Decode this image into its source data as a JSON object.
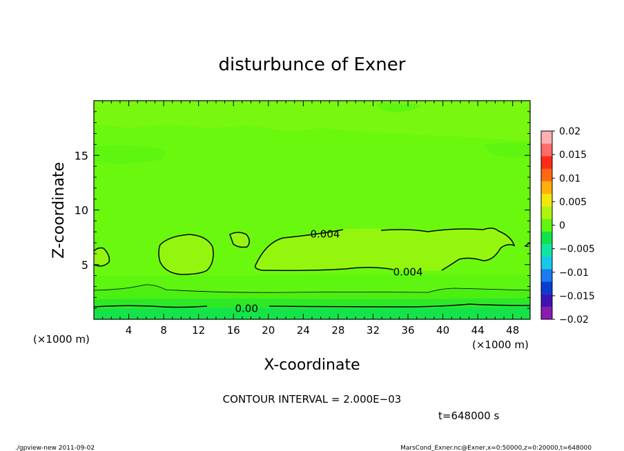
{
  "chart_data": {
    "type": "heatmap",
    "title": "disturbunce of Exner",
    "xlabel": "X-coordinate",
    "ylabel": "Z-coordinate",
    "xunit_left": "(×1000 m)",
    "xunit_right": "(×1000 m)",
    "xlim": [
      0,
      50
    ],
    "ylim": [
      0,
      20
    ],
    "x_ticks": [
      4,
      8,
      12,
      16,
      20,
      24,
      28,
      32,
      36,
      40,
      44,
      48
    ],
    "y_ticks": [
      5,
      10,
      15
    ],
    "colorbar": {
      "min": -0.02,
      "max": 0.02,
      "tick_values": [
        0.02,
        0.015,
        0.01,
        0.005,
        0,
        -0.005,
        -0.01,
        -0.015,
        -0.02
      ],
      "tick_labels": [
        "0.02",
        "0.015",
        "0.01",
        "0.005",
        "0",
        "−0.005",
        "−0.01",
        "−0.015",
        "−0.02"
      ],
      "colors": [
        "#8a1ab0",
        "#3c14b4",
        "#0a3cd2",
        "#1a7cee",
        "#18c8ec",
        "#10e6a4",
        "#10e24a",
        "#62f510",
        "#aef50e",
        "#f0e80c",
        "#ffb00a",
        "#ff6a10",
        "#ff2a1a",
        "#ff6a6a",
        "#ffb0b0"
      ]
    },
    "contour_labels": [
      {
        "text": "0.004",
        "x": 26.5,
        "z": 7.85
      },
      {
        "text": "0.004",
        "x": 36,
        "z": 4.4
      },
      {
        "text": "0.00",
        "x": 17.5,
        "z": 1.05
      }
    ],
    "contour_interval_text": "CONTOUR INTERVAL = 2.000E−03",
    "time_text": "t=648000 s"
  },
  "footer": {
    "left": "./gpview-new   2011-09-02",
    "right": "MarsCond_Exner.nc@Exner,x=0:50000,z=0:20000,t=648000"
  }
}
